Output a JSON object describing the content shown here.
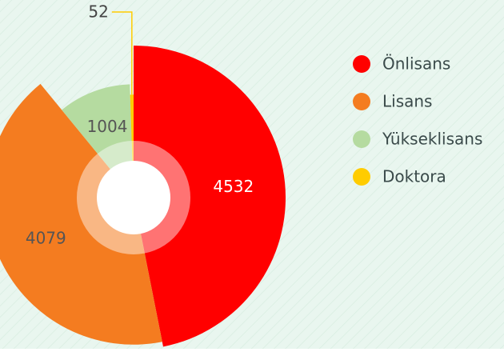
{
  "chart_data": {
    "type": "pie",
    "categories": [
      "Önlisans",
      "Lisans",
      "Yükseklisans",
      "Doktora"
    ],
    "values": [
      4532,
      4079,
      1004,
      52
    ],
    "colors": [
      "#ff0000",
      "#f47c20",
      "#b5dba0",
      "#ffcc00"
    ],
    "rose": true,
    "legend": "right"
  }
}
